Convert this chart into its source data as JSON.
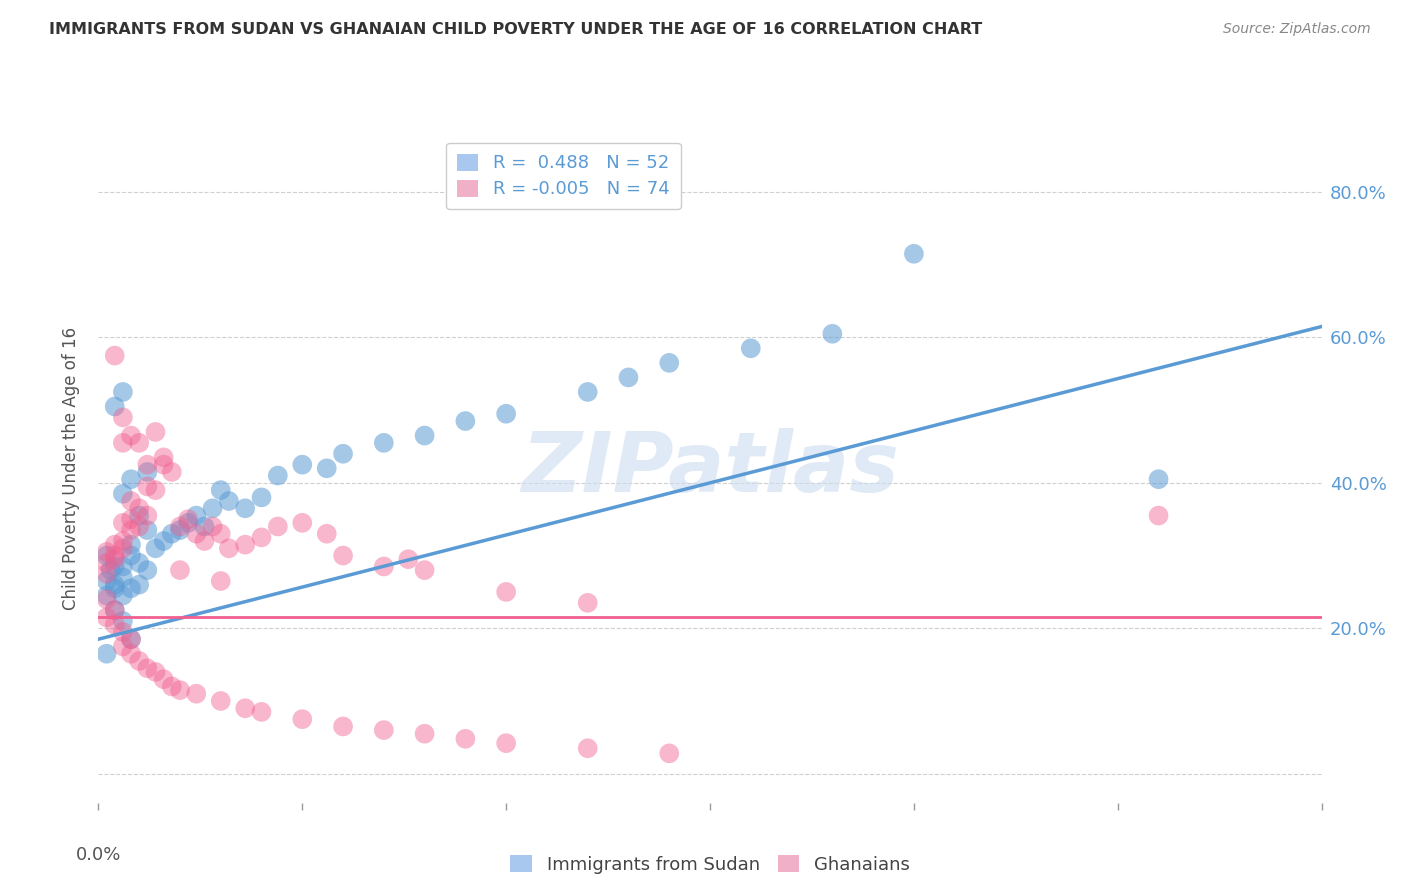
{
  "title": "IMMIGRANTS FROM SUDAN VS GHANAIAN CHILD POVERTY UNDER THE AGE OF 16 CORRELATION CHART",
  "source": "Source: ZipAtlas.com",
  "ylabel": "Child Poverty Under the Age of 16",
  "yticks": [
    0.0,
    0.2,
    0.4,
    0.6,
    0.8
  ],
  "ytick_labels": [
    "",
    "20.0%",
    "40.0%",
    "60.0%",
    "80.0%"
  ],
  "xlim": [
    0.0,
    0.15
  ],
  "ylim": [
    -0.04,
    0.88
  ],
  "legend_line1": "R =  0.488   N = 52",
  "legend_line2": "R = -0.005   N = 74",
  "legend_labels_bottom": [
    "Immigrants from Sudan",
    "Ghanaians"
  ],
  "watermark": "ZIPatlas",
  "blue_color": "#5b9bd5",
  "pink_color": "#f06090",
  "blue_scatter": [
    [
      0.001,
      0.3
    ],
    [
      0.002,
      0.285
    ],
    [
      0.001,
      0.265
    ],
    [
      0.0015,
      0.28
    ],
    [
      0.002,
      0.255
    ],
    [
      0.003,
      0.27
    ],
    [
      0.001,
      0.245
    ],
    [
      0.002,
      0.26
    ],
    [
      0.003,
      0.245
    ],
    [
      0.004,
      0.255
    ],
    [
      0.005,
      0.26
    ],
    [
      0.003,
      0.285
    ],
    [
      0.004,
      0.3
    ],
    [
      0.005,
      0.29
    ],
    [
      0.006,
      0.28
    ],
    [
      0.004,
      0.315
    ],
    [
      0.006,
      0.335
    ],
    [
      0.007,
      0.31
    ],
    [
      0.005,
      0.355
    ],
    [
      0.008,
      0.32
    ],
    [
      0.003,
      0.385
    ],
    [
      0.004,
      0.405
    ],
    [
      0.006,
      0.415
    ],
    [
      0.009,
      0.33
    ],
    [
      0.01,
      0.335
    ],
    [
      0.011,
      0.345
    ],
    [
      0.012,
      0.355
    ],
    [
      0.013,
      0.34
    ],
    [
      0.014,
      0.365
    ],
    [
      0.015,
      0.39
    ],
    [
      0.016,
      0.375
    ],
    [
      0.018,
      0.365
    ],
    [
      0.02,
      0.38
    ],
    [
      0.022,
      0.41
    ],
    [
      0.025,
      0.425
    ],
    [
      0.028,
      0.42
    ],
    [
      0.03,
      0.44
    ],
    [
      0.035,
      0.455
    ],
    [
      0.04,
      0.465
    ],
    [
      0.045,
      0.485
    ],
    [
      0.002,
      0.505
    ],
    [
      0.003,
      0.525
    ],
    [
      0.05,
      0.495
    ],
    [
      0.06,
      0.525
    ],
    [
      0.065,
      0.545
    ],
    [
      0.07,
      0.565
    ],
    [
      0.08,
      0.585
    ],
    [
      0.09,
      0.605
    ],
    [
      0.002,
      0.225
    ],
    [
      0.003,
      0.21
    ],
    [
      0.004,
      0.185
    ],
    [
      0.001,
      0.165
    ],
    [
      0.1,
      0.715
    ],
    [
      0.13,
      0.405
    ]
  ],
  "pink_scatter": [
    [
      0.001,
      0.29
    ],
    [
      0.001,
      0.275
    ],
    [
      0.002,
      0.295
    ],
    [
      0.001,
      0.305
    ],
    [
      0.002,
      0.315
    ],
    [
      0.003,
      0.31
    ],
    [
      0.002,
      0.3
    ],
    [
      0.003,
      0.32
    ],
    [
      0.004,
      0.335
    ],
    [
      0.003,
      0.345
    ],
    [
      0.004,
      0.35
    ],
    [
      0.005,
      0.34
    ],
    [
      0.006,
      0.355
    ],
    [
      0.005,
      0.365
    ],
    [
      0.004,
      0.375
    ],
    [
      0.006,
      0.395
    ],
    [
      0.007,
      0.39
    ],
    [
      0.006,
      0.425
    ],
    [
      0.008,
      0.435
    ],
    [
      0.009,
      0.415
    ],
    [
      0.003,
      0.455
    ],
    [
      0.004,
      0.465
    ],
    [
      0.005,
      0.455
    ],
    [
      0.007,
      0.47
    ],
    [
      0.008,
      0.425
    ],
    [
      0.01,
      0.34
    ],
    [
      0.011,
      0.35
    ],
    [
      0.012,
      0.33
    ],
    [
      0.013,
      0.32
    ],
    [
      0.014,
      0.34
    ],
    [
      0.015,
      0.33
    ],
    [
      0.016,
      0.31
    ],
    [
      0.018,
      0.315
    ],
    [
      0.02,
      0.325
    ],
    [
      0.022,
      0.34
    ],
    [
      0.025,
      0.345
    ],
    [
      0.028,
      0.33
    ],
    [
      0.03,
      0.3
    ],
    [
      0.035,
      0.285
    ],
    [
      0.038,
      0.295
    ],
    [
      0.04,
      0.28
    ],
    [
      0.05,
      0.25
    ],
    [
      0.06,
      0.235
    ],
    [
      0.002,
      0.575
    ],
    [
      0.003,
      0.49
    ],
    [
      0.001,
      0.24
    ],
    [
      0.002,
      0.225
    ],
    [
      0.001,
      0.215
    ],
    [
      0.002,
      0.205
    ],
    [
      0.003,
      0.195
    ],
    [
      0.004,
      0.185
    ],
    [
      0.003,
      0.175
    ],
    [
      0.004,
      0.165
    ],
    [
      0.005,
      0.155
    ],
    [
      0.006,
      0.145
    ],
    [
      0.007,
      0.14
    ],
    [
      0.008,
      0.13
    ],
    [
      0.009,
      0.12
    ],
    [
      0.01,
      0.115
    ],
    [
      0.012,
      0.11
    ],
    [
      0.015,
      0.1
    ],
    [
      0.018,
      0.09
    ],
    [
      0.02,
      0.085
    ],
    [
      0.025,
      0.075
    ],
    [
      0.03,
      0.065
    ],
    [
      0.035,
      0.06
    ],
    [
      0.04,
      0.055
    ],
    [
      0.045,
      0.048
    ],
    [
      0.05,
      0.042
    ],
    [
      0.06,
      0.035
    ],
    [
      0.07,
      0.028
    ],
    [
      0.13,
      0.355
    ],
    [
      0.01,
      0.28
    ],
    [
      0.015,
      0.265
    ]
  ],
  "blue_line": [
    [
      0.0,
      0.185
    ],
    [
      0.15,
      0.615
    ]
  ],
  "pink_line": [
    [
      0.0,
      0.215
    ],
    [
      0.15,
      0.215
    ]
  ],
  "background_color": "#ffffff",
  "grid_color": "#d0d0d0",
  "xtick_positions": [
    0.0,
    0.025,
    0.05,
    0.075,
    0.1,
    0.125,
    0.15
  ]
}
